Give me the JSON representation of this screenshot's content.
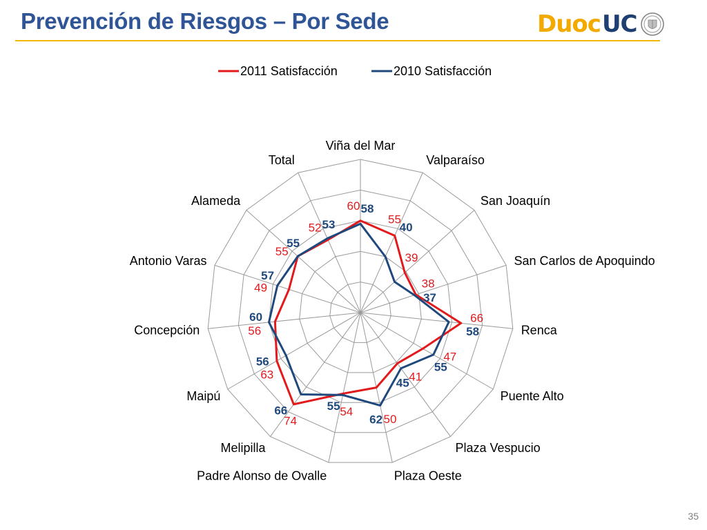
{
  "slide": {
    "title": "Prevención de Riesgos – Por Sede",
    "logo": {
      "text_primary": "Duoc",
      "text_secondary": "UC",
      "seal_icon": "university-seal-icon"
    },
    "page_number": "35"
  },
  "colors": {
    "title": "#2f5597",
    "rule": "#f2b705",
    "series_2011": "#e31a1c",
    "series_2010": "#1f497d",
    "grid": "#9a9a9a",
    "label": "#000000"
  },
  "chart_data": {
    "type": "radar",
    "categories": [
      "Viña del Mar",
      "Valparaíso",
      "San Joaquín",
      "San Carlos de Apoquindo",
      "Renca",
      "Puente Alto",
      "Plaza Vespucio",
      "Plaza Oeste",
      "Padre Alonso de Ovalle",
      "Melipilla",
      "Maipú",
      "Concepción",
      "Antonio Varas",
      "Alameda",
      "Total"
    ],
    "series": [
      {
        "name": "2011 Satisfacción",
        "color": "#e31a1c",
        "values": [
          60,
          55,
          39,
          38,
          66,
          47,
          41,
          50,
          54,
          74,
          63,
          56,
          49,
          55,
          52
        ]
      },
      {
        "name": "2010 Satisfacción",
        "color": "#1f497d",
        "values": [
          58,
          40,
          30,
          37,
          58,
          55,
          45,
          62,
          55,
          66,
          56,
          60,
          57,
          55,
          53
        ]
      }
    ],
    "value_labels_2011": [
      "60",
      "55",
      "39",
      "38",
      "66",
      "47",
      "41",
      "50",
      "54",
      "74",
      "63",
      "56",
      "49",
      "55",
      "52"
    ],
    "value_labels_2010": [
      "58",
      "40",
      "",
      "37",
      "58",
      "55",
      "45",
      "62",
      "55",
      "66",
      "56",
      "60",
      "57",
      "55",
      "53"
    ],
    "rmin": 0,
    "rmax": 100,
    "grid_rings": 5,
    "legend_position": "top"
  }
}
